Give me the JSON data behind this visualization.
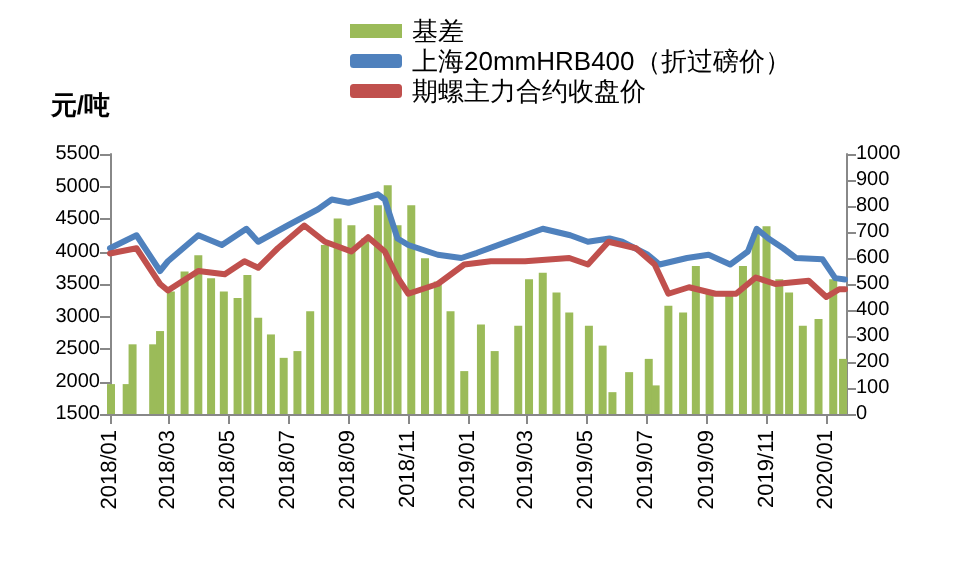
{
  "chart_data": {
    "type": "line",
    "ylabel": "元/吨",
    "legend": "top",
    "grid": false,
    "marker": "none",
    "xlim": [
      "2018-01-01",
      "2020-01-21"
    ],
    "xticks": [
      {
        "value": "2018-01-01",
        "label": "2018/01"
      },
      {
        "value": "2018-03-01",
        "label": "2018/03"
      },
      {
        "value": "2018-05-01",
        "label": "2018/05"
      },
      {
        "value": "2018-07-01",
        "label": "2018/07"
      },
      {
        "value": "2018-09-01",
        "label": "2018/09"
      },
      {
        "value": "2018-11-01",
        "label": "2018/11"
      },
      {
        "value": "2019-01-01",
        "label": "2019/01"
      },
      {
        "value": "2019-03-01",
        "label": "2019/03"
      },
      {
        "value": "2019-05-01",
        "label": "2019/05"
      },
      {
        "value": "2019-07-01",
        "label": "2019/07"
      },
      {
        "value": "2019-09-01",
        "label": "2019/09"
      },
      {
        "value": "2019-11-01",
        "label": "2019/11"
      },
      {
        "value": "2020-01-01",
        "label": "2020/01"
      }
    ],
    "ylim": [
      1500,
      5500
    ],
    "yticks": [
      1500,
      2000,
      2500,
      3000,
      3500,
      4000,
      4500,
      5000,
      5500
    ],
    "y2lim": [
      0,
      1000
    ],
    "y2ticks": [
      0,
      100,
      200,
      300,
      400,
      500,
      600,
      700,
      800,
      900,
      1000
    ],
    "series": [
      {
        "name": "基差",
        "type": "bar",
        "axis": "y2",
        "color": "#9bbb59",
        "x": [
          "2018-01-02",
          "2018-01-18",
          "2018-01-24",
          "2018-02-14",
          "2018-02-21",
          "2018-03-04",
          "2018-03-18",
          "2018-04-01",
          "2018-04-14",
          "2018-04-27",
          "2018-05-11",
          "2018-05-21",
          "2018-06-01",
          "2018-06-14",
          "2018-06-27",
          "2018-07-11",
          "2018-07-24",
          "2018-08-08",
          "2018-08-21",
          "2018-09-04",
          "2018-09-18",
          "2018-10-01",
          "2018-10-11",
          "2018-10-21",
          "2018-11-04",
          "2018-11-18",
          "2018-12-01",
          "2018-12-14",
          "2018-12-28",
          "2019-01-14",
          "2019-01-28",
          "2019-02-21",
          "2019-03-04",
          "2019-03-18",
          "2019-04-01",
          "2019-04-14",
          "2019-05-04",
          "2019-05-18",
          "2019-05-28",
          "2019-06-14",
          "2019-07-04",
          "2019-07-11",
          "2019-07-24",
          "2019-08-08",
          "2019-08-21",
          "2019-09-04",
          "2019-09-24",
          "2019-10-08",
          "2019-10-21",
          "2019-11-01",
          "2019-11-14",
          "2019-11-24",
          "2019-12-08",
          "2019-12-24",
          "2020-01-08",
          "2020-01-18"
        ],
        "values": [
          115,
          115,
          268,
          268,
          319,
          471,
          548,
          611,
          522,
          471,
          446,
          535,
          370,
          306,
          216,
          242,
          395,
          650,
          752,
          726,
          675,
          803,
          880,
          726,
          803,
          599,
          510,
          395,
          165,
          344,
          242,
          339,
          518,
          543,
          467,
          390,
          339,
          263,
          84,
          161,
          212,
          110,
          416,
          390,
          569,
          467,
          467,
          569,
          696,
          722,
          518,
          467,
          339,
          365,
          518,
          212
        ]
      },
      {
        "name": "上海20mmHRB400（折过磅价）",
        "color": "#4f81bd",
        "x": [
          "2018-01-01",
          "2018-01-28",
          "2018-02-21",
          "2018-03-01",
          "2018-04-01",
          "2018-04-25",
          "2018-05-20",
          "2018-06-01",
          "2018-07-01",
          "2018-08-01",
          "2018-08-15",
          "2018-09-01",
          "2018-10-01",
          "2018-10-08",
          "2018-10-21",
          "2018-11-01",
          "2018-12-01",
          "2018-12-25",
          "2019-01-10",
          "2019-02-28",
          "2019-03-18",
          "2019-04-15",
          "2019-05-03",
          "2019-05-25",
          "2019-06-07",
          "2019-07-03",
          "2019-07-15",
          "2019-08-12",
          "2019-09-03",
          "2019-09-25",
          "2019-10-13",
          "2019-10-22",
          "2019-11-03",
          "2019-11-18",
          "2019-12-01",
          "2019-12-28",
          "2020-01-10",
          "2020-01-20"
        ],
        "values": [
          4050,
          4250,
          3700,
          3850,
          4250,
          4100,
          4350,
          4150,
          4400,
          4650,
          4800,
          4750,
          4880,
          4800,
          4200,
          4100,
          3950,
          3900,
          3980,
          4250,
          4350,
          4250,
          4150,
          4200,
          4150,
          3950,
          3800,
          3900,
          3950,
          3800,
          4000,
          4350,
          4200,
          4050,
          3900,
          3880,
          3590,
          3570
        ]
      },
      {
        "name": "期螺主力合约收盘价",
        "color": "#c0504d",
        "x": [
          "2018-01-01",
          "2018-01-28",
          "2018-02-21",
          "2018-03-01",
          "2018-04-01",
          "2018-04-28",
          "2018-05-18",
          "2018-06-01",
          "2018-06-21",
          "2018-07-18",
          "2018-08-08",
          "2018-09-04",
          "2018-09-21",
          "2018-10-08",
          "2018-10-21",
          "2018-11-01",
          "2018-12-01",
          "2018-12-28",
          "2019-01-24",
          "2019-02-28",
          "2019-04-14",
          "2019-05-03",
          "2019-05-24",
          "2019-06-21",
          "2019-07-10",
          "2019-07-24",
          "2019-08-14",
          "2019-09-10",
          "2019-10-01",
          "2019-10-21",
          "2019-11-10",
          "2019-12-14",
          "2020-01-01",
          "2020-01-14",
          "2020-01-20"
        ],
        "values": [
          3970,
          4050,
          3500,
          3400,
          3700,
          3650,
          3850,
          3750,
          4050,
          4400,
          4150,
          4000,
          4220,
          4000,
          3600,
          3350,
          3500,
          3800,
          3850,
          3850,
          3900,
          3800,
          4150,
          4050,
          3800,
          3350,
          3450,
          3350,
          3350,
          3600,
          3500,
          3550,
          3300,
          3420,
          3420
        ]
      }
    ]
  }
}
